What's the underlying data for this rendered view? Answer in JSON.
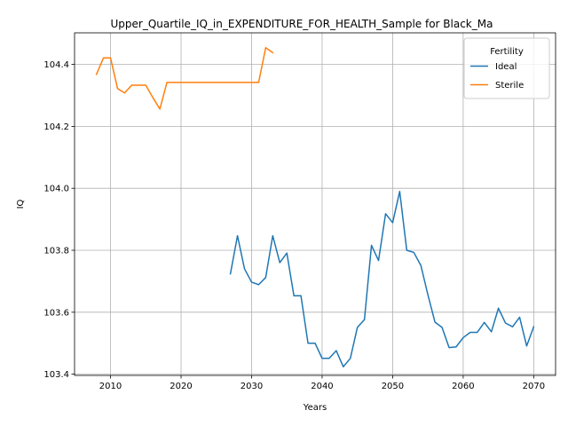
{
  "chart_data": {
    "type": "line",
    "title": "Upper_Quartile_IQ_in_EXPENDITURE_FOR_HEALTH_Sample for Black_Ma",
    "xlabel": "Years",
    "ylabel": "IQ",
    "xlim": [
      2004.9,
      2073.1
    ],
    "ylim": [
      103.396,
      104.502
    ],
    "xticks": [
      2010,
      2020,
      2030,
      2040,
      2050,
      2060,
      2070
    ],
    "yticks": [
      103.4,
      103.6,
      103.8,
      104.0,
      104.2,
      104.4
    ],
    "grid": true,
    "legend": {
      "title": "Fertility",
      "placement": "top-right"
    },
    "series": [
      {
        "name": "Ideal",
        "color": "#1f77b4",
        "x": [
          2027,
          2028,
          2029,
          2030,
          2031,
          2032,
          2033,
          2034,
          2035,
          2036,
          2037,
          2038,
          2039,
          2040,
          2041,
          2042,
          2043,
          2044,
          2045,
          2046,
          2047,
          2048,
          2049,
          2050,
          2051,
          2052,
          2053,
          2054,
          2055,
          2056,
          2057,
          2058,
          2059,
          2060,
          2061,
          2062,
          2063,
          2064,
          2065,
          2066,
          2067,
          2068,
          2069,
          2070
        ],
        "y": [
          103.724,
          103.847,
          103.74,
          103.697,
          103.689,
          103.712,
          103.847,
          103.76,
          103.791,
          103.653,
          103.653,
          103.5,
          103.5,
          103.451,
          103.451,
          103.476,
          103.424,
          103.451,
          103.551,
          103.576,
          103.816,
          103.767,
          103.918,
          103.889,
          103.99,
          103.8,
          103.793,
          103.751,
          103.656,
          103.568,
          103.551,
          103.486,
          103.488,
          103.518,
          103.535,
          103.535,
          103.567,
          103.537,
          103.613,
          103.565,
          103.553,
          103.584,
          103.491,
          103.553
        ]
      },
      {
        "name": "Sterile",
        "color": "#ff7f0e",
        "x": [
          2008,
          2009,
          2010,
          2011,
          2012,
          2013,
          2014,
          2015,
          2016,
          2017,
          2018,
          2019,
          2020,
          2021,
          2022,
          2023,
          2024,
          2025,
          2026,
          2027,
          2028,
          2029,
          2030,
          2031,
          2032,
          2033
        ],
        "y": [
          104.368,
          104.421,
          104.421,
          104.322,
          104.308,
          104.333,
          104.333,
          104.333,
          104.293,
          104.256,
          104.342,
          104.342,
          104.342,
          104.342,
          104.342,
          104.342,
          104.342,
          104.342,
          104.342,
          104.342,
          104.342,
          104.342,
          104.342,
          104.342,
          104.454,
          104.438
        ]
      }
    ]
  }
}
